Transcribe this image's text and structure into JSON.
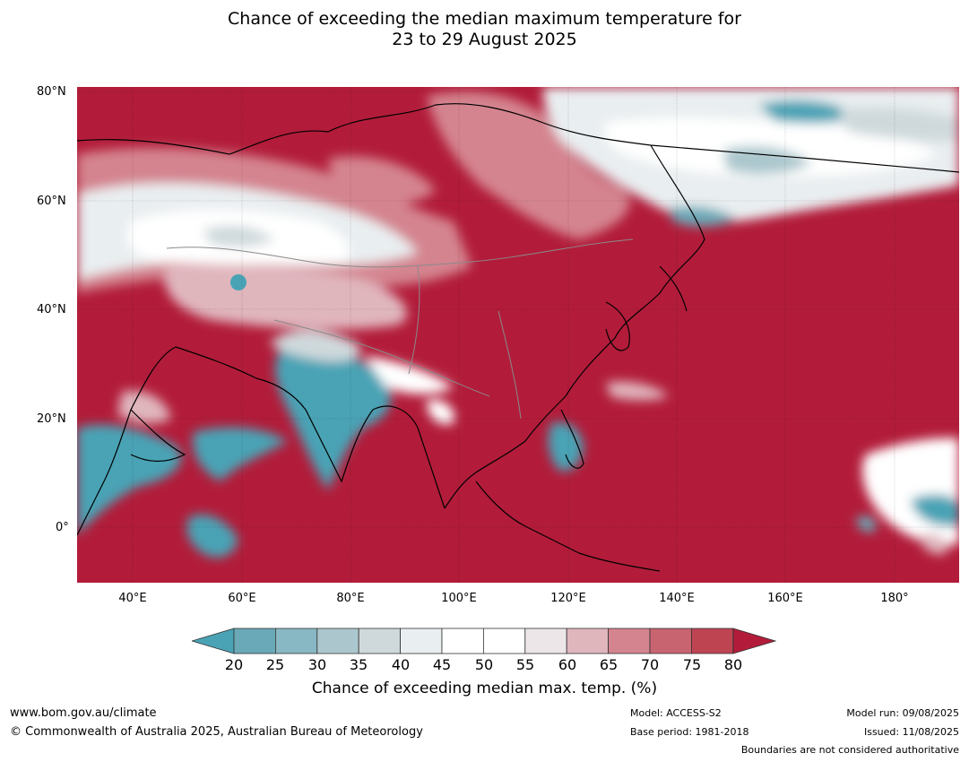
{
  "title": {
    "line1": "Chance of exceeding the median maximum temperature for",
    "line2": "23 to 29 August 2025"
  },
  "map": {
    "lat_labels": [
      "80°N",
      "60°N",
      "40°N",
      "20°N",
      "0°"
    ],
    "lon_labels": [
      "40°E",
      "60°E",
      "80°E",
      "100°E",
      "120°E",
      "140°E",
      "160°E",
      "180°"
    ],
    "colors": {
      "background_high": "#b21c3a",
      "ocean_low": "#4aa3b5"
    }
  },
  "colorbar": {
    "ticks": [
      "20",
      "25",
      "30",
      "35",
      "40",
      "45",
      "50",
      "55",
      "60",
      "65",
      "70",
      "75",
      "80"
    ],
    "colors": [
      "#4aa3b5",
      "#6aa9b7",
      "#88b8c3",
      "#abc7cd",
      "#cfd9dc",
      "#e9eef0",
      "#ffffff",
      "#ffffff",
      "#ece6e8",
      "#e0b6bd",
      "#d4848f",
      "#c76470",
      "#be4452",
      "#b21c3a"
    ],
    "label": "Chance of exceeding median max. temp. (%)"
  },
  "footer": {
    "website": "www.bom.gov.au/climate",
    "copyright": "© Commonwealth of Australia 2025, Australian Bureau of Meteorology",
    "model": "Model: ACCESS-S2",
    "base_period": "Base period: 1981-2018",
    "model_run": "Model run: 09/08/2025",
    "issued": "Issued: 11/08/2025",
    "disclaimer": "Boundaries are not considered authoritative"
  }
}
